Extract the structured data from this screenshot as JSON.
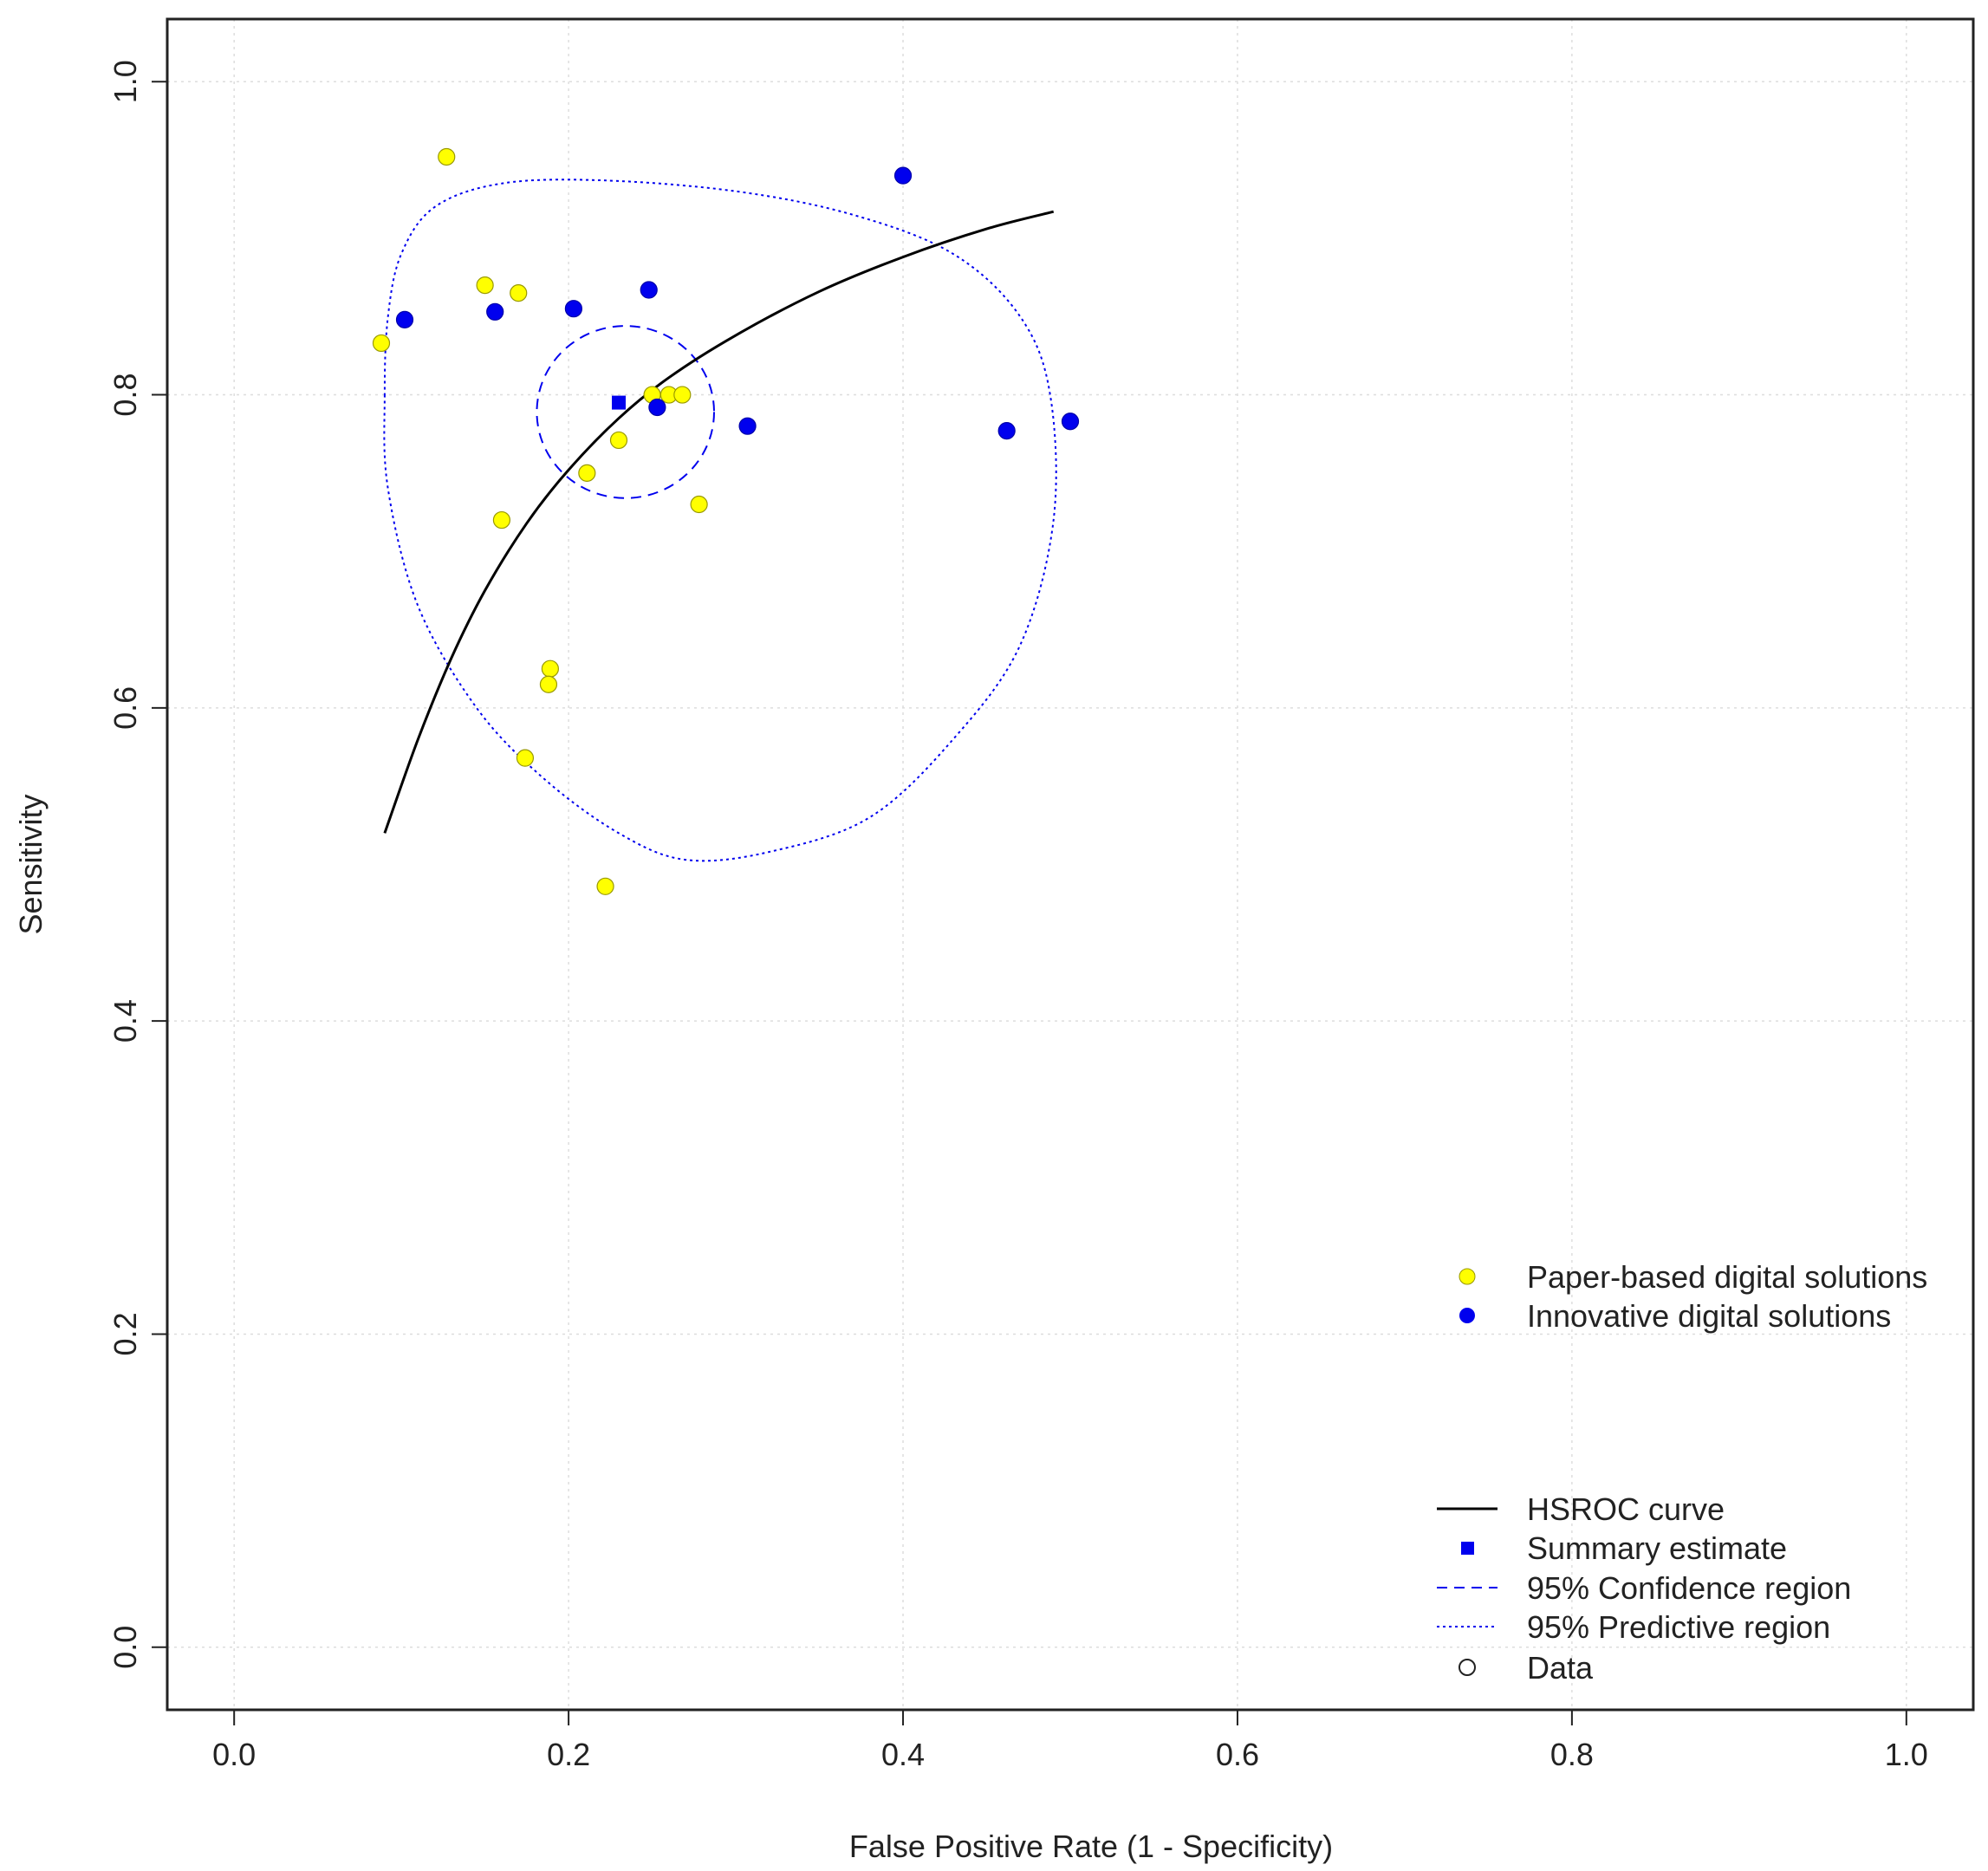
{
  "chart_data": {
    "type": "scatter",
    "title": "",
    "xlabel": "False Positive Rate (1 - Specificity)",
    "ylabel": "Sensitivity",
    "xlim": [
      -0.04,
      1.04
    ],
    "ylim": [
      -0.04,
      1.04
    ],
    "xticks": [
      0.0,
      0.2,
      0.4,
      0.6,
      0.8,
      1.0
    ],
    "yticks": [
      0.0,
      0.2,
      0.4,
      0.6,
      0.8,
      1.0
    ],
    "xtick_labels": [
      "0.0",
      "0.2",
      "0.4",
      "0.6",
      "0.8",
      "1.0"
    ],
    "ytick_labels": [
      "0.0",
      "0.2",
      "0.4",
      "0.6",
      "0.8",
      "1.0"
    ],
    "grid": true,
    "series": [
      {
        "name": "Paper-based digital solutions",
        "color": "#FFFF00",
        "marker": "circle",
        "points": [
          [
            0.088,
            0.833
          ],
          [
            0.127,
            0.952
          ],
          [
            0.15,
            0.87
          ],
          [
            0.17,
            0.865
          ],
          [
            0.16,
            0.72
          ],
          [
            0.211,
            0.75
          ],
          [
            0.23,
            0.771
          ],
          [
            0.25,
            0.8
          ],
          [
            0.26,
            0.8
          ],
          [
            0.268,
            0.8
          ],
          [
            0.278,
            0.73
          ],
          [
            0.189,
            0.625
          ],
          [
            0.188,
            0.615
          ],
          [
            0.174,
            0.568
          ],
          [
            0.222,
            0.486
          ]
        ]
      },
      {
        "name": "Innovative digital solutions",
        "color": "#0000EE",
        "marker": "circle",
        "points": [
          [
            0.102,
            0.848
          ],
          [
            0.156,
            0.853
          ],
          [
            0.203,
            0.855
          ],
          [
            0.248,
            0.867
          ],
          [
            0.253,
            0.792
          ],
          [
            0.307,
            0.78
          ],
          [
            0.4,
            0.94
          ],
          [
            0.462,
            0.777
          ],
          [
            0.5,
            0.783
          ]
        ]
      }
    ],
    "summary_estimate": {
      "name": "Summary estimate",
      "fpr": 0.23,
      "sensitivity": 0.795,
      "color": "#0000EE"
    },
    "hsroc_curve": {
      "name": "HSROC curve",
      "color": "#000000",
      "points": [
        [
          0.09,
          0.52
        ],
        [
          0.11,
          0.58
        ],
        [
          0.13,
          0.632
        ],
        [
          0.15,
          0.675
        ],
        [
          0.175,
          0.718
        ],
        [
          0.2,
          0.752
        ],
        [
          0.23,
          0.785
        ],
        [
          0.26,
          0.811
        ],
        [
          0.3,
          0.838
        ],
        [
          0.35,
          0.866
        ],
        [
          0.4,
          0.888
        ],
        [
          0.45,
          0.906
        ],
        [
          0.49,
          0.917
        ]
      ]
    },
    "confidence_region": {
      "name": "95% Confidence region",
      "color": "#0000EE",
      "center": [
        0.234,
        0.789
      ],
      "radius_x": 0.053,
      "radius_y": 0.055
    },
    "predictive_region": {
      "name": "95% Predictive region",
      "color": "#0000EE",
      "points": [
        [
          0.09,
          0.8
        ],
        [
          0.092,
          0.74
        ],
        [
          0.11,
          0.665
        ],
        [
          0.145,
          0.6
        ],
        [
          0.185,
          0.555
        ],
        [
          0.23,
          0.52
        ],
        [
          0.27,
          0.503
        ],
        [
          0.32,
          0.508
        ],
        [
          0.38,
          0.53
        ],
        [
          0.43,
          0.58
        ],
        [
          0.47,
          0.64
        ],
        [
          0.49,
          0.72
        ],
        [
          0.488,
          0.8
        ],
        [
          0.47,
          0.85
        ],
        [
          0.43,
          0.89
        ],
        [
          0.37,
          0.915
        ],
        [
          0.3,
          0.93
        ],
        [
          0.22,
          0.937
        ],
        [
          0.16,
          0.935
        ],
        [
          0.12,
          0.92
        ],
        [
          0.1,
          0.89
        ],
        [
          0.092,
          0.85
        ]
      ]
    },
    "legend_groups": [
      {
        "position": "middle-right",
        "items": [
          "Paper-based digital solutions",
          "Innovative digital solutions"
        ]
      },
      {
        "position": "bottom-right",
        "items": [
          "HSROC curve",
          "Summary estimate",
          "95% Confidence region",
          "95% Predictive region",
          "Data"
        ]
      }
    ]
  },
  "legend": {
    "paper_based": "Paper-based digital solutions",
    "innovative": "Innovative digital solutions",
    "hsroc": "HSROC curve",
    "summary": "Summary estimate",
    "confidence": "95% Confidence region",
    "predictive": "95% Predictive region",
    "data": "Data"
  }
}
